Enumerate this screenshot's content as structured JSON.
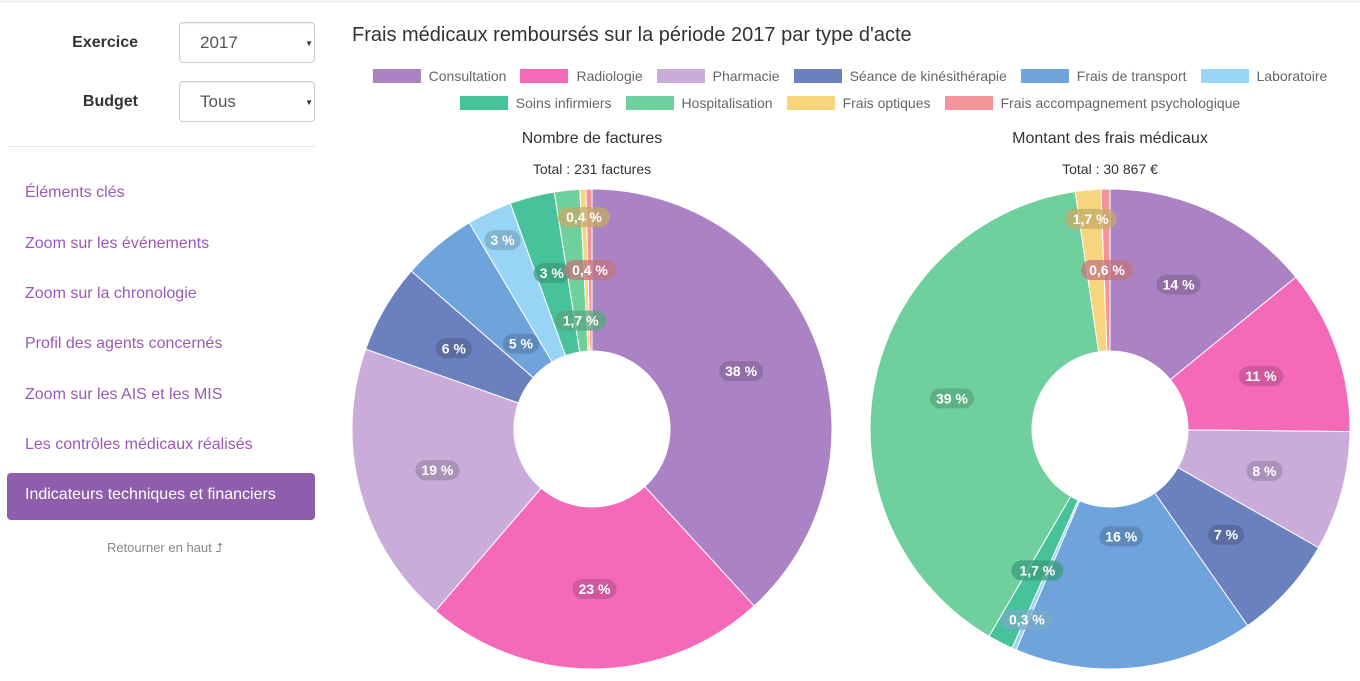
{
  "filters": {
    "exercice_label": "Exercice",
    "exercice_value": "2017",
    "budget_label": "Budget",
    "budget_value": "Tous"
  },
  "nav": [
    {
      "label": "Éléments clés"
    },
    {
      "label": "Zoom sur les événements"
    },
    {
      "label": "Zoom sur la chronologie"
    },
    {
      "label": "Profil des agents concernés"
    },
    {
      "label": "Zoom sur les AIS et les MIS"
    },
    {
      "label": "Les contrôles médicaux réalisés"
    },
    {
      "label": "Indicateurs techniques et financiers",
      "active": true
    }
  ],
  "back_to_top": "Retourner en haut ⮥",
  "title": "Frais médicaux remboursés sur la période 2017 par type d'acte",
  "legend": [
    {
      "name": "Consultation",
      "color": "#ab83c4"
    },
    {
      "name": "Radiologie",
      "color": "#f46ab8"
    },
    {
      "name": "Pharmacie",
      "color": "#c9acd9"
    },
    {
      "name": "Séance de kinésithérapie",
      "color": "#6b80bf"
    },
    {
      "name": "Frais de transport",
      "color": "#6fa3dc"
    },
    {
      "name": "Laboratoire",
      "color": "#97d4f5"
    },
    {
      "name": "Soins infirmiers",
      "color": "#48c29b"
    },
    {
      "name": "Hospitalisation",
      "color": "#6fd09e"
    },
    {
      "name": "Frais optiques",
      "color": "#f7d57f"
    },
    {
      "name": "Frais accompagnement psychologique",
      "color": "#f3949a"
    }
  ],
  "chart_data": [
    {
      "type": "pie",
      "title": "Nombre de factures",
      "subtitle": "Total : 231 factures",
      "categories": [
        "Consultation",
        "Radiologie",
        "Pharmacie",
        "Séance de kinésithérapie",
        "Frais de transport",
        "Laboratoire",
        "Soins infirmiers",
        "Hospitalisation",
        "Frais optiques",
        "Frais accompagnement psychologique"
      ],
      "values": [
        38,
        23,
        19,
        6,
        5,
        3,
        3,
        1.7,
        0.4,
        0.4
      ],
      "labels": [
        "38 %",
        "23 %",
        "19 %",
        "6 %",
        "5 %",
        "3 %",
        "3 %",
        "1,7 %",
        "0,4 %",
        "0,4 %"
      ]
    },
    {
      "type": "pie",
      "title": "Montant des frais médicaux",
      "subtitle": "Total : 30 867 €",
      "categories": [
        "Consultation",
        "Radiologie",
        "Pharmacie",
        "Séance de kinésithérapie",
        "Frais de transport",
        "Laboratoire",
        "Soins infirmiers",
        "Hospitalisation",
        "Frais optiques",
        "Frais accompagnement psychologique"
      ],
      "values": [
        14,
        11,
        8,
        7,
        16,
        0.3,
        1.7,
        39,
        1.7,
        0.6
      ],
      "labels": [
        "14 %",
        "11 %",
        "8 %",
        "7 %",
        "16 %",
        "0,3 %",
        "1,7 %",
        "39 %",
        "1,7 %",
        "0,6 %"
      ]
    }
  ]
}
